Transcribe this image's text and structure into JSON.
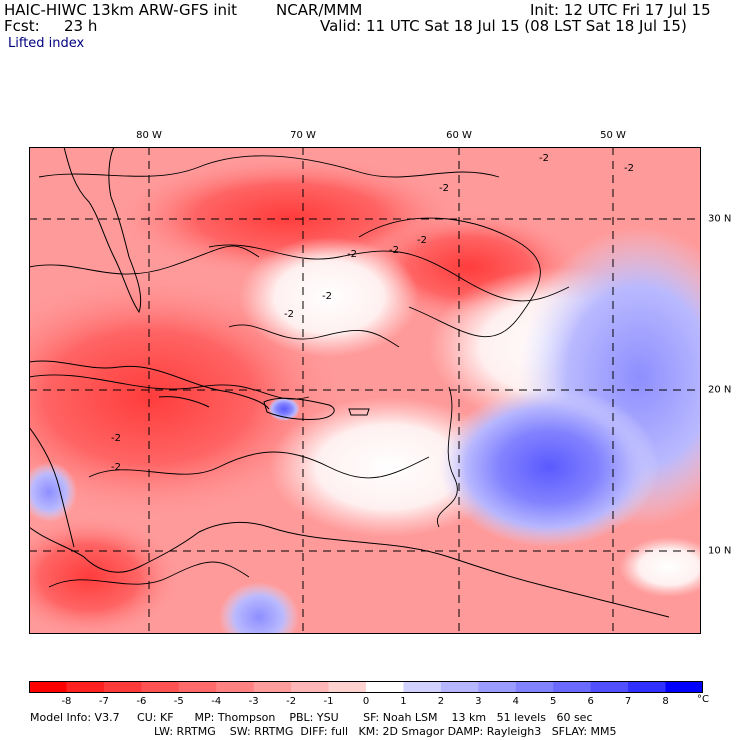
{
  "header": {
    "model": "HAIC-HIWC 13km ARW-GFS init",
    "org": "NCAR/MMM",
    "init": "Init: 12 UTC Fri 17 Jul 15",
    "fcst_label": "Fcst:",
    "fcst_value": "23 h",
    "valid": "Valid: 11 UTC Sat 18 Jul 15 (08 LST Sat 18 Jul 15)",
    "field": "Lifted index"
  },
  "map": {
    "lon_labels": [
      "80 W",
      "70 W",
      "60 W",
      "50 W"
    ],
    "lat_labels": [
      "30 N",
      "20 N",
      "10 N"
    ],
    "contour_labels": [
      "-2",
      "-2",
      "-2",
      "-2",
      "-2",
      "-2",
      "-2",
      "-2",
      "-2",
      "-2"
    ]
  },
  "colorbar": {
    "ticks": [
      "-8",
      "-7",
      "-6",
      "-5",
      "-4",
      "-3",
      "-2",
      "-1",
      "0",
      "1",
      "2",
      "3",
      "4",
      "5",
      "6",
      "7",
      "8"
    ],
    "unit": "°C",
    "colors": [
      "#ff0000",
      "#ff2020",
      "#ff3a3a",
      "#ff5252",
      "#ff6a6a",
      "#ff8282",
      "#ff9c9c",
      "#ffb6b6",
      "#ffd2d2",
      "#ffffff",
      "#d2d2ff",
      "#b6b6ff",
      "#9c9cff",
      "#8282ff",
      "#6a6aff",
      "#5050ff",
      "#3030ff",
      "#0000ff"
    ]
  },
  "info": {
    "line1": "Model Info: V3.7     CU: KF      MP: Thompson    PBL: YSU       SF: Noah LSM    13 km   51 levels   60 sec",
    "line2": "LW: RRTMG    SW: RRTMG  DIFF: full   KM: 2D Smagor DAMP: Rayleigh3   SFLAY: MM5"
  }
}
